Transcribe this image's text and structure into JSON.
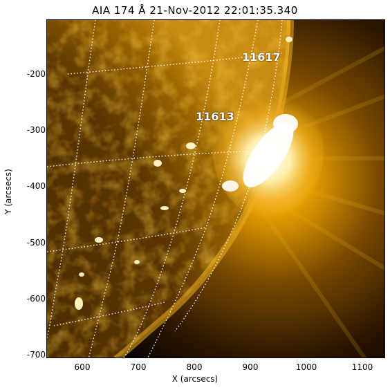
{
  "title": "AIA 174 Å 21-Nov-2012 22:01:35.340",
  "xlabel": "X (arcsecs)",
  "ylabel": "Y (arcsecs)",
  "x_ticks": [
    "600",
    "700",
    "800",
    "900",
    "1000",
    "1100"
  ],
  "y_ticks": [
    "-200",
    "-300",
    "-400",
    "-500",
    "-600",
    "-700"
  ],
  "active_regions": [
    {
      "label": "11617"
    },
    {
      "label": "11613"
    }
  ],
  "colors": {
    "sun_dark": "#2a1500",
    "sun_mid": "#8a5a00",
    "sun_bright": "#ffd870",
    "limb_glow": "#e8a000",
    "background": "#0a0500",
    "grid": "#ffffff"
  }
}
